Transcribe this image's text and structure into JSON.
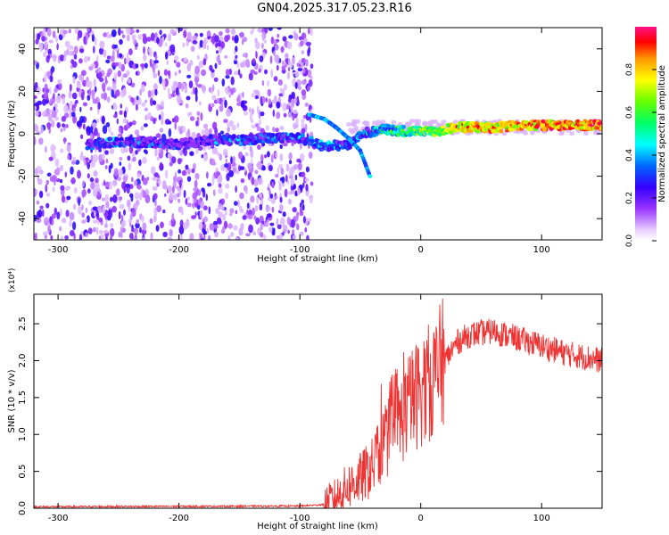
{
  "title": "GN04.2025.317.05.23.R16",
  "chart_data": [
    {
      "type": "heatmap",
      "xlabel": "Height of straight line (km)",
      "ylabel": "Frequency (Hz)",
      "xlim": [
        -320,
        150
      ],
      "ylim": [
        -50,
        50
      ],
      "xticks": [
        -300,
        -200,
        -100,
        0,
        100
      ],
      "yticks": [
        -40,
        -20,
        0,
        20,
        40
      ],
      "colorbar": {
        "label": "Normalized spectral amplitude",
        "range": [
          0.0,
          1.0
        ],
        "ticks": [
          0.0,
          0.2,
          0.4,
          0.6,
          0.8
        ]
      },
      "ridge": [
        {
          "x": -275,
          "y": -5,
          "amp": 0.3
        },
        {
          "x": -250,
          "y": -4,
          "amp": 0.35
        },
        {
          "x": -225,
          "y": -4,
          "amp": 0.3
        },
        {
          "x": -200,
          "y": -5,
          "amp": 0.25
        },
        {
          "x": -175,
          "y": -3,
          "amp": 0.3
        },
        {
          "x": -150,
          "y": -3,
          "amp": 0.35
        },
        {
          "x": -125,
          "y": -2,
          "amp": 0.35
        },
        {
          "x": -100,
          "y": -2,
          "amp": 0.35
        },
        {
          "x": -80,
          "y": -6,
          "amp": 0.4
        },
        {
          "x": -60,
          "y": -5,
          "amp": 0.35
        },
        {
          "x": -50,
          "y": 0,
          "amp": 0.4
        },
        {
          "x": -30,
          "y": 2,
          "amp": 0.5
        },
        {
          "x": -10,
          "y": 1,
          "amp": 0.6
        },
        {
          "x": 10,
          "y": 1,
          "amp": 0.7
        },
        {
          "x": 30,
          "y": 3,
          "amp": 0.85
        },
        {
          "x": 60,
          "y": 3,
          "amp": 0.85
        },
        {
          "x": 90,
          "y": 4,
          "amp": 0.9
        },
        {
          "x": 120,
          "y": 4,
          "amp": 0.95
        },
        {
          "x": 150,
          "y": 4,
          "amp": 0.95
        }
      ],
      "branch": [
        {
          "x": -92,
          "y": 9
        },
        {
          "x": -80,
          "y": 7
        },
        {
          "x": -70,
          "y": 3
        },
        {
          "x": -60,
          "y": -2
        },
        {
          "x": -50,
          "y": -8
        },
        {
          "x": -42,
          "y": -20
        }
      ]
    },
    {
      "type": "line",
      "xlabel": "Height of straight line (km)",
      "ylabel": "SNR (10 * v/v)",
      "scale_note": "(x10⁴)",
      "xlim": [
        -320,
        150
      ],
      "ylim": [
        0.0,
        2.9
      ],
      "xticks": [
        -300,
        -200,
        -100,
        0,
        100
      ],
      "yticks": [
        0.0,
        0.5,
        1.0,
        1.5,
        2.0,
        2.5
      ],
      "ytick_labels": [
        "0.0",
        "0.5",
        "1.0",
        "1.5",
        "2.0",
        "2.5"
      ],
      "color": "#ee3333",
      "envelope": [
        {
          "x": -320,
          "y": 0.02
        },
        {
          "x": -100,
          "y": 0.03
        },
        {
          "x": -80,
          "y": 0.05
        },
        {
          "x": -70,
          "y": 0.15
        },
        {
          "x": -60,
          "y": 0.3
        },
        {
          "x": -50,
          "y": 0.4
        },
        {
          "x": -40,
          "y": 0.55
        },
        {
          "x": -30,
          "y": 0.9
        },
        {
          "x": -20,
          "y": 1.1
        },
        {
          "x": -10,
          "y": 1.4
        },
        {
          "x": 0,
          "y": 1.6
        },
        {
          "x": 10,
          "y": 1.75
        },
        {
          "x": 20,
          "y": 2.0
        },
        {
          "x": 30,
          "y": 2.25
        },
        {
          "x": 40,
          "y": 2.35
        },
        {
          "x": 60,
          "y": 2.4
        },
        {
          "x": 80,
          "y": 2.3
        },
        {
          "x": 100,
          "y": 2.2
        },
        {
          "x": 120,
          "y": 2.1
        },
        {
          "x": 150,
          "y": 2.0
        }
      ]
    }
  ]
}
